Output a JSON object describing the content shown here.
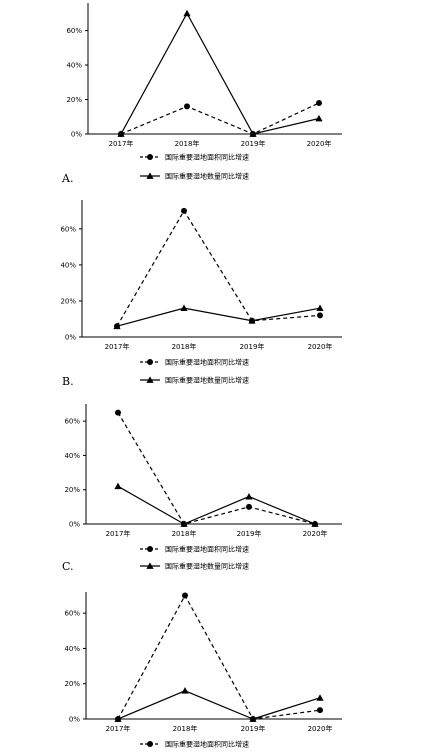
{
  "chart_data": [
    {
      "type": "line",
      "option": "A.",
      "categories": [
        "2017年",
        "2018年",
        "2019年",
        "2020年"
      ],
      "yticks": [
        "0%",
        "20%",
        "40%",
        "60%"
      ],
      "ylim": [
        0,
        76
      ],
      "legend_position": "bottom",
      "series": [
        {
          "name": "国际重要湿地面积同比增速",
          "style": "dashed",
          "marker": "circle",
          "values": [
            0,
            16,
            0,
            18
          ]
        },
        {
          "name": "国际重要湿地数量同比增速",
          "style": "solid",
          "marker": "triangle",
          "values": [
            0,
            70,
            0,
            9
          ]
        }
      ]
    },
    {
      "type": "line",
      "option": "B.",
      "categories": [
        "2017年",
        "2018年",
        "2019年",
        "2020年"
      ],
      "yticks": [
        "0%",
        "20%",
        "40%",
        "60%"
      ],
      "ylim": [
        0,
        76
      ],
      "legend_position": "bottom",
      "series": [
        {
          "name": "国际重要湿地面积同比增速",
          "style": "dashed",
          "marker": "circle",
          "values": [
            6,
            70,
            9,
            12
          ]
        },
        {
          "name": "国际重要湿地数量同比增速",
          "style": "solid",
          "marker": "triangle",
          "values": [
            6,
            16,
            9,
            16
          ]
        }
      ]
    },
    {
      "type": "line",
      "option": "C.",
      "categories": [
        "2017年",
        "2018年",
        "2019年",
        "2020年"
      ],
      "yticks": [
        "0%",
        "20%",
        "40%",
        "60%"
      ],
      "ylim": [
        0,
        70
      ],
      "legend_position": "bottom",
      "series": [
        {
          "name": "国际重要湿地面积同比增速",
          "style": "dashed",
          "marker": "circle",
          "values": [
            65,
            0,
            10,
            0
          ]
        },
        {
          "name": "国际重要湿地数量同比增速",
          "style": "solid",
          "marker": "triangle",
          "values": [
            22,
            0,
            16,
            0
          ]
        }
      ]
    },
    {
      "type": "line",
      "option": "",
      "categories": [
        "2017年",
        "2018年",
        "2019年",
        "2020年"
      ],
      "yticks": [
        "0%",
        "20%",
        "40%",
        "60%"
      ],
      "ylim": [
        0,
        72
      ],
      "legend_position": "bottom",
      "series": [
        {
          "name": "国际重要湿地面积同比增速",
          "style": "dashed",
          "marker": "circle",
          "values": [
            0,
            70,
            0,
            5
          ]
        },
        {
          "name": "国际重要湿地数量同比增速",
          "style": "solid",
          "marker": "triangle",
          "values": [
            0,
            16,
            0,
            12
          ]
        }
      ]
    }
  ]
}
